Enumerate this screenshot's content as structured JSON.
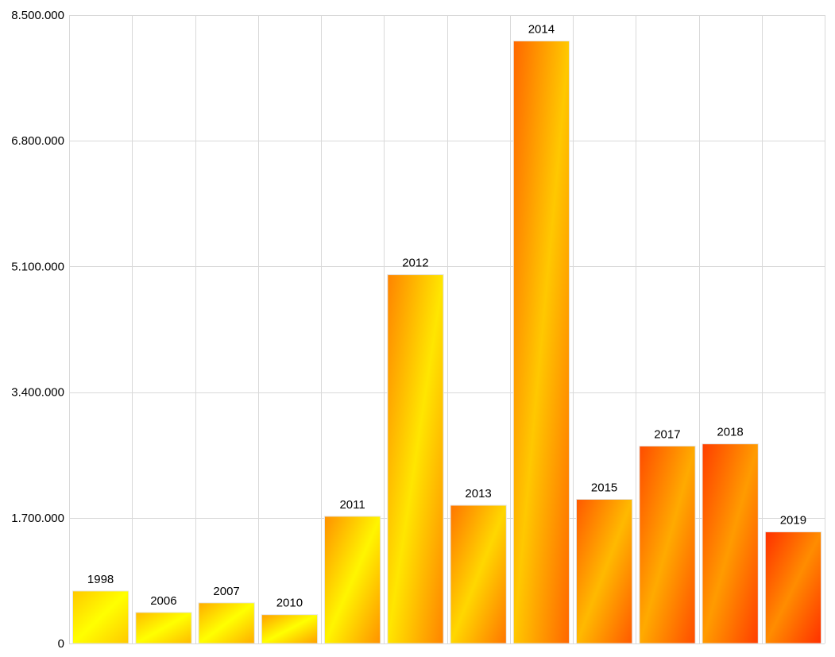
{
  "chart_data": {
    "type": "bar",
    "title": "",
    "xlabel": "",
    "ylabel": "",
    "ylim": [
      0,
      8500000
    ],
    "y_ticks": [
      {
        "value": 0,
        "label": "0"
      },
      {
        "value": 1700000,
        "label": "1.700.000"
      },
      {
        "value": 3400000,
        "label": "3.400.000"
      },
      {
        "value": 5100000,
        "label": "5.100.000"
      },
      {
        "value": 6800000,
        "label": "6.800.000"
      },
      {
        "value": 8500000,
        "label": "8.500.000"
      }
    ],
    "categories": [
      "1998",
      "2006",
      "2007",
      "2010",
      "2011",
      "2012",
      "2013",
      "2014",
      "2015",
      "2017",
      "2018",
      "2019"
    ],
    "values": [
      710000,
      420000,
      550000,
      390000,
      1720000,
      4990000,
      1870000,
      8150000,
      1950000,
      2670000,
      2700000,
      1510000
    ],
    "data_labels": [
      "1998",
      "2006",
      "2007",
      "2010",
      "2011",
      "2012",
      "2013",
      "2014",
      "2015",
      "2017",
      "2018",
      "2019"
    ],
    "grid": true,
    "legend": "none",
    "colors": {
      "yellow": "#ffff00",
      "gold": "#ffc800",
      "orange": "#ff9000",
      "red_orange": "#ff3000"
    }
  }
}
